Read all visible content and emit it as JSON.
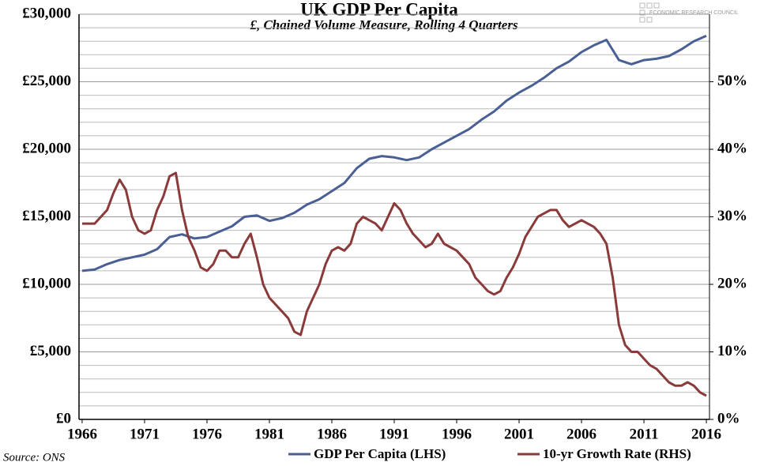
{
  "chart_data": {
    "type": "line",
    "title": "UK GDP Per Capita",
    "subtitle": "£, Chained Volume Measure, Rolling 4 Quarters",
    "source": "Source: ONS",
    "logo": "ECONOMIC RESEARCH COUNCIL",
    "xlim": [
      1965.75,
      2016.25
    ],
    "xticks": [
      1966,
      1971,
      1976,
      1981,
      1986,
      1991,
      1996,
      2001,
      2006,
      2011,
      2016
    ],
    "ylim": [
      0,
      30000
    ],
    "yticks": [
      {
        "value": 0,
        "label": "£0"
      },
      {
        "value": 5000,
        "label": "£5,000"
      },
      {
        "value": 10000,
        "label": "£10,000"
      },
      {
        "value": 15000,
        "label": "£15,000"
      },
      {
        "value": 20000,
        "label": "£20,000"
      },
      {
        "value": 25000,
        "label": "£25,000"
      },
      {
        "value": 30000,
        "label": "£30,000"
      }
    ],
    "minor_yticks": [
      1000,
      2000,
      3000,
      4000,
      6000,
      7000,
      8000,
      9000,
      11000,
      12000,
      13000,
      14000,
      16000,
      17000,
      18000,
      19000,
      21000,
      22000,
      23000,
      24000,
      26000,
      27000,
      28000,
      29000
    ],
    "y2lim": [
      0,
      60
    ],
    "y2ticks": [
      {
        "value": 0,
        "label": "0%"
      },
      {
        "value": 10,
        "label": "10%"
      },
      {
        "value": 20,
        "label": "20%"
      },
      {
        "value": 30,
        "label": "30%"
      },
      {
        "value": 40,
        "label": "40%"
      },
      {
        "value": 50,
        "label": "50%"
      }
    ],
    "grid": true,
    "legend": "bottom",
    "series": [
      {
        "name": "GDP Per Capita (LHS)",
        "color": "#4a5f94",
        "x": [
          1966,
          1967,
          1968,
          1969,
          1970,
          1971,
          1972,
          1973,
          1974,
          1975,
          1976,
          1977,
          1978,
          1979,
          1980,
          1981,
          1982,
          1983,
          1984,
          1985,
          1986,
          1987,
          1988,
          1989,
          1990,
          1991,
          1992,
          1993,
          1994,
          1995,
          1996,
          1997,
          1998,
          1999,
          2000,
          2001,
          2002,
          2003,
          2004,
          2005,
          2006,
          2007,
          2008,
          2009,
          2010,
          2011,
          2012,
          2013,
          2014,
          2015,
          2016
        ],
        "values": [
          11000,
          11100,
          11500,
          11800,
          12000,
          12200,
          12600,
          13500,
          13700,
          13400,
          13500,
          13900,
          14300,
          15000,
          15100,
          14700,
          14900,
          15300,
          15900,
          16300,
          16900,
          17500,
          18600,
          19300,
          19500,
          19400,
          19200,
          19400,
          20000,
          20500,
          21000,
          21500,
          22200,
          22800,
          23600,
          24200,
          24700,
          25300,
          26000,
          26500,
          27200,
          27700,
          28100,
          26600,
          26300,
          26600,
          26700,
          26900,
          27400,
          28000,
          28400
        ]
      },
      {
        "name": "10-yr Growth Rate (RHS)",
        "color": "#8b3a3a",
        "axis": "y2",
        "x": [
          1966,
          1967,
          1968,
          1968.5,
          1969,
          1969.5,
          1970,
          1970.5,
          1971,
          1971.5,
          1972,
          1972.5,
          1973,
          1973.5,
          1974,
          1974.5,
          1975,
          1975.5,
          1976,
          1976.5,
          1977,
          1977.5,
          1978,
          1978.5,
          1979,
          1979.5,
          1980,
          1980.5,
          1981,
          1981.5,
          1982,
          1982.5,
          1983,
          1983.5,
          1984,
          1984.5,
          1985,
          1985.5,
          1986,
          1986.5,
          1987,
          1987.5,
          1988,
          1988.5,
          1989,
          1989.5,
          1990,
          1990.5,
          1991,
          1991.5,
          1992,
          1992.5,
          1993,
          1993.5,
          1994,
          1994.5,
          1995,
          1995.5,
          1996,
          1996.5,
          1997,
          1997.5,
          1998,
          1998.5,
          1999,
          1999.5,
          2000,
          2000.5,
          2001,
          2001.5,
          2002,
          2002.5,
          2003,
          2003.5,
          2004,
          2004.5,
          2005,
          2005.5,
          2006,
          2006.5,
          2007,
          2007.5,
          2008,
          2008.5,
          2009,
          2009.5,
          2010,
          2010.5,
          2011,
          2011.5,
          2012,
          2012.5,
          2013,
          2013.5,
          2014,
          2014.5,
          2015,
          2015.5,
          2016
        ],
        "values": [
          29,
          29,
          31,
          33.5,
          35.5,
          34,
          30,
          28,
          27.5,
          28,
          31,
          33,
          36,
          36.5,
          31,
          27,
          25,
          22.5,
          22,
          23,
          25,
          25,
          24,
          24,
          26,
          27.5,
          24,
          20,
          18,
          17,
          16,
          15,
          13,
          12.5,
          16,
          18,
          20,
          23,
          25,
          25.5,
          25,
          26,
          29,
          30,
          29.5,
          29,
          28,
          30,
          32,
          31,
          29,
          27.5,
          26.5,
          25.5,
          26,
          27.5,
          26,
          25.5,
          25,
          24,
          23,
          21,
          20,
          19,
          18.5,
          19,
          21,
          22.5,
          24.5,
          27,
          28.5,
          30,
          30.5,
          31,
          31,
          29.5,
          28.5,
          29,
          29.5,
          29,
          28.5,
          27.5,
          26,
          21,
          14,
          11,
          10,
          10,
          9,
          8,
          7.5,
          6.5,
          5.5,
          5,
          5,
          5.5,
          5,
          4,
          3.5
        ]
      }
    ]
  }
}
